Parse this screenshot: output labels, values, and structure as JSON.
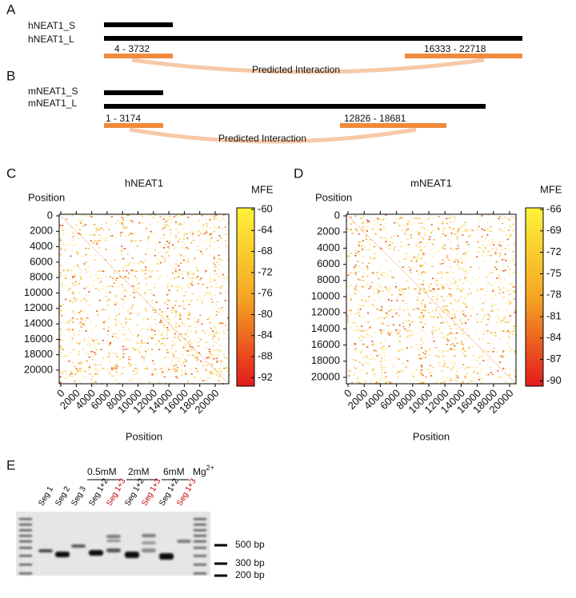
{
  "panel_a": {
    "label": "A",
    "rows": [
      "hNEAT1_S",
      "hNEAT1_L"
    ],
    "regions": [
      "4 - 3732",
      "16333  - 22718"
    ],
    "annotation": "Predicted Interaction"
  },
  "panel_b": {
    "label": "B",
    "rows": [
      "mNEAT1_S",
      "mNEAT1_L"
    ],
    "regions": [
      "1 - 3174",
      "12826  - 18681"
    ],
    "annotation": "Predicted Interaction"
  },
  "panel_c": {
    "label": "C",
    "title": "hNEAT1",
    "y_label": "Position",
    "x_label": "Position",
    "colorbar_label": "MFE",
    "ticks": [
      0,
      2000,
      4000,
      6000,
      8000,
      10000,
      12000,
      14000,
      16000,
      18000,
      20000
    ],
    "colorbar_ticks": [
      -60,
      -64,
      -68,
      -72,
      -76,
      -80,
      -84,
      -88,
      -92
    ]
  },
  "panel_d": {
    "label": "D",
    "title": "mNEAT1",
    "y_label": "Position",
    "x_label": "Position",
    "colorbar_label": "MFE",
    "ticks": [
      0,
      2000,
      4000,
      6000,
      8000,
      10000,
      12000,
      14000,
      16000,
      18000,
      20000
    ],
    "colorbar_ticks": [
      -66,
      -69,
      -72,
      -75,
      -78,
      -81,
      -84,
      -87,
      -90
    ]
  },
  "panel_e": {
    "label": "E",
    "conditions": [
      "0.5mM",
      "2mM",
      "6mM"
    ],
    "ion": "Mg",
    "ion_charge": "2+",
    "lanes": [
      {
        "text": "Seg 1",
        "color": "#000000"
      },
      {
        "text": "Seg 2",
        "color": "#000000"
      },
      {
        "text": "Seg 3",
        "color": "#000000"
      },
      {
        "text": "Seg 1+2",
        "color": "#000000"
      },
      {
        "text": "Seg 1+3",
        "color": "#c00000"
      },
      {
        "text": "Seg 1+2",
        "color": "#000000"
      },
      {
        "text": "Seg 1+3",
        "color": "#c00000"
      },
      {
        "text": "Seg 1+2",
        "color": "#000000"
      },
      {
        "text": "Seg 1+3",
        "color": "#c00000"
      }
    ],
    "markers": [
      "500 bp",
      "300 bp",
      "200 bp"
    ]
  }
}
